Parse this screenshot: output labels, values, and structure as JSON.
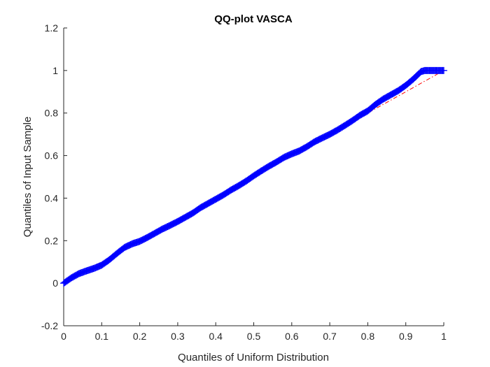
{
  "chart_data": {
    "type": "scatter",
    "title": "QQ-plot VASCA",
    "xlabel": "Quantiles of Uniform Distribution",
    "ylabel": "Quantiles of Input Sample",
    "xlim": [
      0,
      1
    ],
    "ylim": [
      -0.2,
      1.2
    ],
    "xticks": [
      "0",
      "0.1",
      "0.2",
      "0.3",
      "0.4",
      "0.5",
      "0.6",
      "0.7",
      "0.8",
      "0.9",
      "1"
    ],
    "yticks": [
      "-0.2",
      "0",
      "0.2",
      "0.4",
      "0.6",
      "0.8",
      "1",
      "1.2"
    ],
    "grid": false,
    "legend": "none",
    "series": [
      {
        "marker": "plus",
        "color": "#0000ff",
        "x": [
          0,
          0.02,
          0.04,
          0.06,
          0.08,
          0.1,
          0.12,
          0.14,
          0.16,
          0.18,
          0.2,
          0.22,
          0.24,
          0.26,
          0.28,
          0.3,
          0.32,
          0.34,
          0.36,
          0.38,
          0.4,
          0.42,
          0.44,
          0.46,
          0.48,
          0.5,
          0.52,
          0.54,
          0.56,
          0.58,
          0.6,
          0.62,
          0.64,
          0.66,
          0.68,
          0.7,
          0.72,
          0.74,
          0.76,
          0.78,
          0.8,
          0.82,
          0.84,
          0.86,
          0.88,
          0.9,
          0.92,
          0.94,
          0.95,
          0.96,
          0.97,
          0.98,
          0.99,
          1.0
        ],
        "y": [
          0.0,
          0.025,
          0.045,
          0.058,
          0.07,
          0.085,
          0.11,
          0.14,
          0.168,
          0.185,
          0.197,
          0.215,
          0.235,
          0.255,
          0.272,
          0.29,
          0.31,
          0.33,
          0.355,
          0.375,
          0.395,
          0.415,
          0.438,
          0.458,
          0.48,
          0.505,
          0.528,
          0.55,
          0.57,
          0.592,
          0.608,
          0.622,
          0.642,
          0.665,
          0.683,
          0.7,
          0.72,
          0.742,
          0.765,
          0.79,
          0.81,
          0.84,
          0.865,
          0.885,
          0.905,
          0.93,
          0.96,
          0.995,
          1.0,
          1.0,
          1.0,
          1.0,
          1.0,
          1.0
        ]
      },
      {
        "style": "dash-dot",
        "color": "#ff0000",
        "x": [
          0,
          1
        ],
        "y": [
          0,
          1
        ]
      }
    ]
  }
}
